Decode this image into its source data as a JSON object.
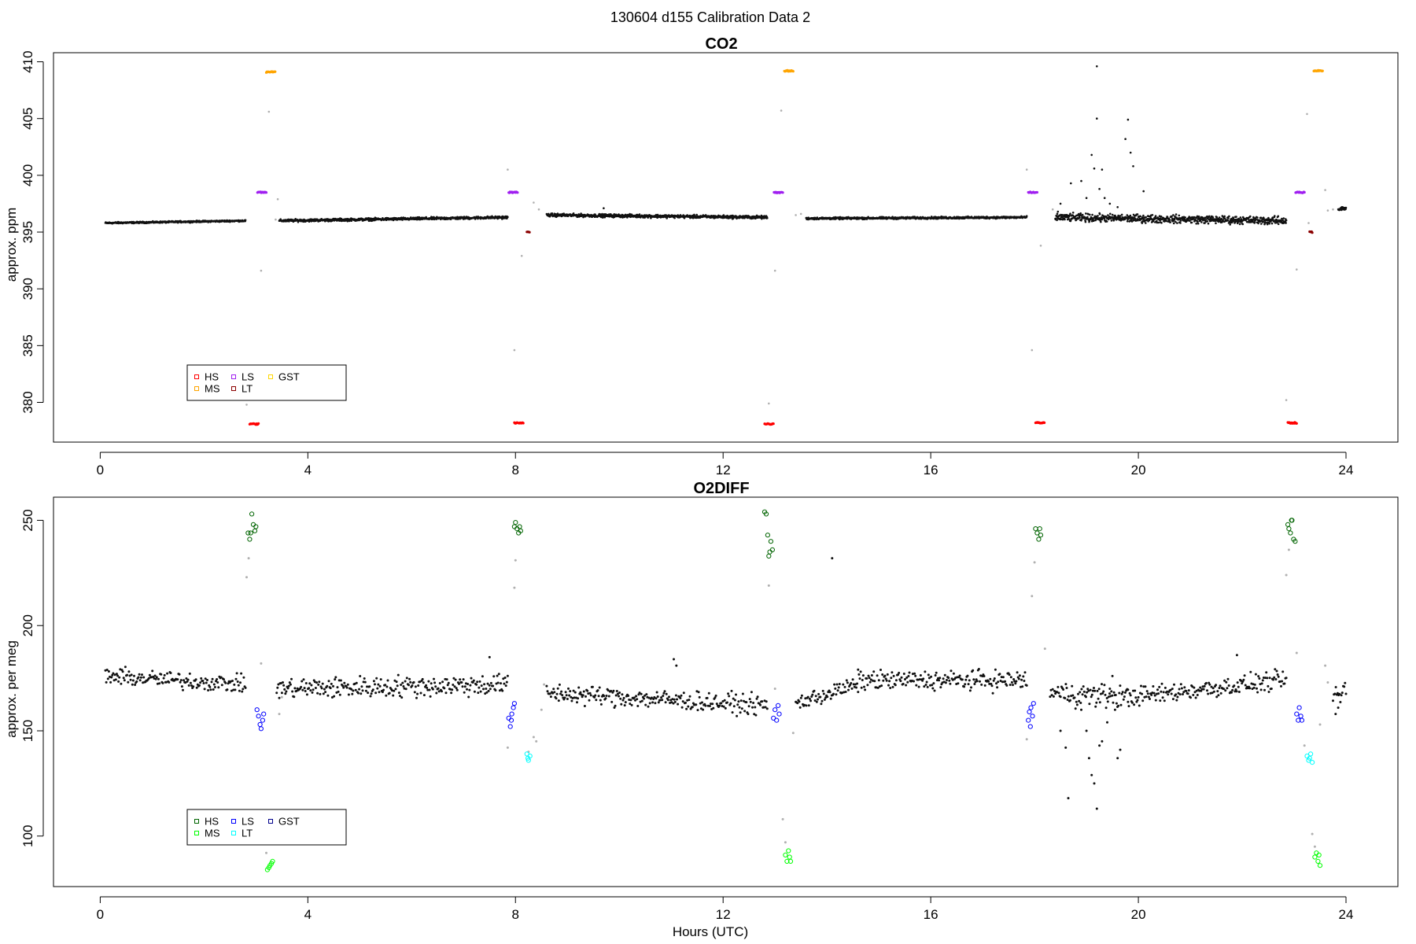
{
  "figure_title": "130604   d155   Calibration Data 2",
  "chart_data": [
    {
      "type": "scatter",
      "title": "CO2",
      "xlabel": "",
      "ylabel": "approx. ppm",
      "xlim": [
        -0.9,
        25
      ],
      "ylim": [
        376.5,
        410.8
      ],
      "xticks": [
        0,
        4,
        8,
        12,
        16,
        20,
        24
      ],
      "yticks": [
        380,
        385,
        390,
        395,
        400,
        405,
        410
      ],
      "legend": {
        "position": "bottom-left",
        "entries": [
          {
            "label": "HS",
            "color": "#ff0000"
          },
          {
            "label": "MS",
            "color": "#ffa500"
          },
          {
            "label": "LS",
            "color": "#a020f0"
          },
          {
            "label": "LT",
            "color": "#8b0000"
          },
          {
            "label": "GST",
            "color": "#ffd700"
          }
        ]
      },
      "ambient_segments": [
        {
          "x0": 0.1,
          "x1": 2.8,
          "y0": 395.8,
          "y1": 396.0,
          "noise": 0.06
        },
        {
          "x0": 3.45,
          "x1": 7.85,
          "y0": 396.0,
          "y1": 396.3,
          "noise": 0.1
        },
        {
          "x0": 8.6,
          "x1": 12.85,
          "y0": 396.5,
          "y1": 396.3,
          "noise": 0.12
        },
        {
          "x0": 13.6,
          "x1": 17.85,
          "y0": 396.2,
          "y1": 396.3,
          "noise": 0.08
        },
        {
          "x0": 18.4,
          "x1": 22.85,
          "y0": 396.3,
          "y1": 396.0,
          "noise": 0.3
        },
        {
          "x0": 23.85,
          "x1": 24.0,
          "y0": 397.0,
          "y1": 397.1,
          "noise": 0.15
        }
      ],
      "ambient_points": [
        {
          "x": 18.5,
          "y": 397.5
        },
        {
          "x": 18.7,
          "y": 399.3
        },
        {
          "x": 18.9,
          "y": 399.5
        },
        {
          "x": 19.0,
          "y": 398.0
        },
        {
          "x": 19.1,
          "y": 401.8
        },
        {
          "x": 19.15,
          "y": 400.6
        },
        {
          "x": 19.2,
          "y": 405.0
        },
        {
          "x": 19.25,
          "y": 398.8
        },
        {
          "x": 19.3,
          "y": 400.5
        },
        {
          "x": 19.35,
          "y": 398.0
        },
        {
          "x": 19.45,
          "y": 397.5
        },
        {
          "x": 19.6,
          "y": 397.2
        },
        {
          "x": 19.75,
          "y": 403.2
        },
        {
          "x": 19.8,
          "y": 404.9
        },
        {
          "x": 19.85,
          "y": 402.0
        },
        {
          "x": 19.9,
          "y": 400.8
        },
        {
          "x": 20.1,
          "y": 398.6
        },
        {
          "x": 19.2,
          "y": 409.6
        },
        {
          "x": 9.7,
          "y": 397.1
        },
        {
          "x": 18.45,
          "y": 396.8
        },
        {
          "x": 21.4,
          "y": 396.2
        }
      ],
      "transition_points": [
        {
          "x": 2.82,
          "y": 379.8
        },
        {
          "x": 3.1,
          "y": 391.6
        },
        {
          "x": 3.25,
          "y": 405.6
        },
        {
          "x": 3.38,
          "y": 396.1
        },
        {
          "x": 3.42,
          "y": 397.9
        },
        {
          "x": 7.85,
          "y": 400.5
        },
        {
          "x": 7.98,
          "y": 384.6
        },
        {
          "x": 8.12,
          "y": 392.9
        },
        {
          "x": 8.35,
          "y": 397.6
        },
        {
          "x": 8.45,
          "y": 397.0
        },
        {
          "x": 12.88,
          "y": 379.9
        },
        {
          "x": 13.0,
          "y": 391.6
        },
        {
          "x": 13.12,
          "y": 405.7
        },
        {
          "x": 13.4,
          "y": 396.5
        },
        {
          "x": 13.5,
          "y": 396.6
        },
        {
          "x": 17.85,
          "y": 400.5
        },
        {
          "x": 17.95,
          "y": 384.6
        },
        {
          "x": 18.12,
          "y": 393.8
        },
        {
          "x": 18.35,
          "y": 397.0
        },
        {
          "x": 22.85,
          "y": 380.2
        },
        {
          "x": 23.05,
          "y": 391.7
        },
        {
          "x": 23.25,
          "y": 405.4
        },
        {
          "x": 23.28,
          "y": 395.8
        },
        {
          "x": 23.6,
          "y": 398.7
        },
        {
          "x": 23.65,
          "y": 396.9
        },
        {
          "x": 23.75,
          "y": 397.0
        }
      ],
      "calibration_groups": [
        {
          "label": "HS",
          "color": "#ff0000",
          "x0": 2.88,
          "x1": 3.05,
          "y": 378.1
        },
        {
          "label": "LS",
          "color": "#a020f0",
          "x0": 3.03,
          "x1": 3.2,
          "y": 398.5
        },
        {
          "label": "MS",
          "color": "#ffa500",
          "x0": 3.2,
          "x1": 3.37,
          "y": 409.1
        },
        {
          "label": "LS",
          "color": "#a020f0",
          "x0": 7.87,
          "x1": 8.04,
          "y": 398.5
        },
        {
          "label": "HS",
          "color": "#ff0000",
          "x0": 7.98,
          "x1": 8.15,
          "y": 378.2
        },
        {
          "label": "LT",
          "color": "#8b0000",
          "x0": 8.22,
          "x1": 8.27,
          "y": 395.0
        },
        {
          "label": "HS",
          "color": "#ff0000",
          "x0": 12.8,
          "x1": 12.97,
          "y": 378.1
        },
        {
          "label": "LS",
          "color": "#a020f0",
          "x0": 12.98,
          "x1": 13.15,
          "y": 398.5
        },
        {
          "label": "MS",
          "color": "#ffa500",
          "x0": 13.18,
          "x1": 13.35,
          "y": 409.2
        },
        {
          "label": "LS",
          "color": "#a020f0",
          "x0": 17.88,
          "x1": 18.05,
          "y": 398.5
        },
        {
          "label": "HS",
          "color": "#ff0000",
          "x0": 18.02,
          "x1": 18.19,
          "y": 378.2
        },
        {
          "label": "HS",
          "color": "#ff0000",
          "x0": 22.88,
          "x1": 23.05,
          "y": 378.2
        },
        {
          "label": "LS",
          "color": "#a020f0",
          "x0": 23.03,
          "x1": 23.2,
          "y": 398.5
        },
        {
          "label": "LT",
          "color": "#8b0000",
          "x0": 23.3,
          "x1": 23.35,
          "y": 395.0
        },
        {
          "label": "MS",
          "color": "#ffa500",
          "x0": 23.38,
          "x1": 23.55,
          "y": 409.2
        }
      ]
    },
    {
      "type": "scatter",
      "title": "O2DIFF",
      "xlabel": "Hours (UTC)",
      "ylabel": "approx. per meg",
      "xlim": [
        -0.9,
        25
      ],
      "ylim": [
        76,
        261
      ],
      "xticks": [
        0,
        4,
        8,
        12,
        16,
        20,
        24
      ],
      "yticks": [
        100,
        150,
        200,
        250
      ],
      "legend": {
        "position": "bottom-left",
        "entries": [
          {
            "label": "HS",
            "color": "#006400"
          },
          {
            "label": "MS",
            "color": "#00ff00"
          },
          {
            "label": "LS",
            "color": "#0000ff"
          },
          {
            "label": "LT",
            "color": "#00ffff"
          },
          {
            "label": "GST",
            "color": "#00008b"
          }
        ]
      },
      "ambient_segments": [
        {
          "x0": 0.1,
          "x1": 2.8,
          "y0": 176,
          "y1": 172,
          "noise": 3.5
        },
        {
          "x0": 3.4,
          "x1": 7.85,
          "y0": 170,
          "y1": 172,
          "noise": 4.5
        },
        {
          "x0": 8.6,
          "x1": 12.85,
          "y0": 168,
          "y1": 162,
          "noise": 4.0
        },
        {
          "x0": 13.4,
          "x1": 14.6,
          "y0": 163,
          "y1": 172,
          "noise": 3.5
        },
        {
          "x0": 14.6,
          "x1": 17.85,
          "y0": 174,
          "y1": 174,
          "noise": 4.0
        },
        {
          "x0": 18.3,
          "x1": 19.8,
          "y0": 168,
          "y1": 166,
          "noise": 5.0
        },
        {
          "x0": 19.8,
          "x1": 22.85,
          "y0": 166,
          "y1": 174,
          "noise": 4.0
        },
        {
          "x0": 23.75,
          "x1": 24.0,
          "y0": 165,
          "y1": 170,
          "noise": 4.0
        }
      ],
      "ambient_points": [
        {
          "x": 7.5,
          "y": 185
        },
        {
          "x": 11.05,
          "y": 184
        },
        {
          "x": 11.1,
          "y": 181
        },
        {
          "x": 14.1,
          "y": 232
        },
        {
          "x": 21.9,
          "y": 186
        },
        {
          "x": 18.6,
          "y": 142
        },
        {
          "x": 18.65,
          "y": 118
        },
        {
          "x": 19.1,
          "y": 129
        },
        {
          "x": 19.15,
          "y": 125
        },
        {
          "x": 19.2,
          "y": 113
        },
        {
          "x": 19.05,
          "y": 137
        },
        {
          "x": 19.25,
          "y": 143
        },
        {
          "x": 19.6,
          "y": 137
        },
        {
          "x": 19.65,
          "y": 141
        },
        {
          "x": 19.4,
          "y": 154
        },
        {
          "x": 19.55,
          "y": 160
        },
        {
          "x": 19.5,
          "y": 176
        },
        {
          "x": 19.45,
          "y": 170
        },
        {
          "x": 18.9,
          "y": 160
        },
        {
          "x": 18.5,
          "y": 150
        },
        {
          "x": 19.0,
          "y": 150
        },
        {
          "x": 19.3,
          "y": 145
        },
        {
          "x": 23.8,
          "y": 158
        },
        {
          "x": 23.85,
          "y": 161
        }
      ],
      "transition_points": [
        {
          "x": 2.82,
          "y": 223
        },
        {
          "x": 2.86,
          "y": 232
        },
        {
          "x": 3.1,
          "y": 182
        },
        {
          "x": 3.2,
          "y": 92
        },
        {
          "x": 3.45,
          "y": 158
        },
        {
          "x": 3.5,
          "y": 166
        },
        {
          "x": 7.85,
          "y": 142
        },
        {
          "x": 7.98,
          "y": 218
        },
        {
          "x": 8.0,
          "y": 231
        },
        {
          "x": 8.25,
          "y": 140
        },
        {
          "x": 8.35,
          "y": 147
        },
        {
          "x": 8.4,
          "y": 145
        },
        {
          "x": 8.5,
          "y": 160
        },
        {
          "x": 8.55,
          "y": 172
        },
        {
          "x": 12.88,
          "y": 219
        },
        {
          "x": 13.0,
          "y": 170
        },
        {
          "x": 13.15,
          "y": 108
        },
        {
          "x": 13.2,
          "y": 97
        },
        {
          "x": 13.35,
          "y": 149
        },
        {
          "x": 17.85,
          "y": 146
        },
        {
          "x": 17.95,
          "y": 214
        },
        {
          "x": 18.0,
          "y": 230
        },
        {
          "x": 18.2,
          "y": 189
        },
        {
          "x": 22.85,
          "y": 224
        },
        {
          "x": 22.9,
          "y": 236
        },
        {
          "x": 23.05,
          "y": 187
        },
        {
          "x": 23.2,
          "y": 143
        },
        {
          "x": 23.35,
          "y": 101
        },
        {
          "x": 23.4,
          "y": 95
        },
        {
          "x": 23.5,
          "y": 153
        },
        {
          "x": 23.6,
          "y": 181
        },
        {
          "x": 23.65,
          "y": 173
        }
      ],
      "calibration_points": [
        {
          "label": "HS",
          "color": "#006400",
          "values": [
            [
              2.85,
              244
            ],
            [
              2.88,
              241
            ],
            [
              2.92,
              253
            ],
            [
              2.95,
              248
            ],
            [
              2.98,
              245
            ],
            [
              2.9,
              244
            ],
            [
              3.0,
              247
            ]
          ]
        },
        {
          "label": "LS",
          "color": "#0000ff",
          "values": [
            [
              3.02,
              160
            ],
            [
              3.05,
              157
            ],
            [
              3.08,
              153
            ],
            [
              3.1,
              151
            ],
            [
              3.13,
              155
            ],
            [
              3.15,
              158
            ]
          ]
        },
        {
          "label": "MS",
          "color": "#00ff00",
          "values": [
            [
              3.22,
              84
            ],
            [
              3.27,
              86
            ],
            [
              3.32,
              88
            ],
            [
              3.3,
              87
            ],
            [
              3.25,
              85
            ]
          ]
        },
        {
          "label": "LS",
          "color": "#0000ff",
          "values": [
            [
              7.87,
              156
            ],
            [
              7.9,
              152
            ],
            [
              7.93,
              158
            ],
            [
              7.96,
              161
            ],
            [
              7.98,
              163
            ],
            [
              7.92,
              155
            ]
          ]
        },
        {
          "label": "HS",
          "color": "#006400",
          "values": [
            [
              7.98,
              247
            ],
            [
              8.0,
              249
            ],
            [
              8.03,
              246
            ],
            [
              8.06,
              244
            ],
            [
              8.08,
              247
            ],
            [
              8.1,
              245
            ]
          ]
        },
        {
          "label": "LT",
          "color": "#00ffff",
          "values": [
            [
              8.22,
              139
            ],
            [
              8.25,
              136
            ],
            [
              8.28,
              138
            ],
            [
              8.24,
              137
            ]
          ]
        },
        {
          "label": "HS",
          "color": "#006400",
          "values": [
            [
              12.8,
              254
            ],
            [
              12.83,
              253
            ],
            [
              12.86,
              243
            ],
            [
              12.88,
              233
            ],
            [
              12.9,
              235
            ],
            [
              12.92,
              240
            ],
            [
              12.95,
              236
            ]
          ]
        },
        {
          "label": "LS",
          "color": "#0000ff",
          "values": [
            [
              12.97,
              156
            ],
            [
              13.0,
              160
            ],
            [
              13.03,
              155
            ],
            [
              13.06,
              162
            ],
            [
              13.08,
              158
            ]
          ]
        },
        {
          "label": "MS",
          "color": "#00ff00",
          "values": [
            [
              13.2,
              91
            ],
            [
              13.23,
              88
            ],
            [
              13.26,
              93
            ],
            [
              13.3,
              88
            ],
            [
              13.28,
              90
            ]
          ]
        },
        {
          "label": "LS",
          "color": "#0000ff",
          "values": [
            [
              17.88,
              155
            ],
            [
              17.9,
              159
            ],
            [
              17.93,
              161
            ],
            [
              17.96,
              157
            ],
            [
              17.98,
              163
            ],
            [
              17.92,
              152
            ]
          ]
        },
        {
          "label": "HS",
          "color": "#006400",
          "values": [
            [
              18.02,
              246
            ],
            [
              18.05,
              244
            ],
            [
              18.08,
              241
            ],
            [
              18.1,
              246
            ],
            [
              18.12,
              243
            ]
          ]
        },
        {
          "label": "HS",
          "color": "#006400",
          "values": [
            [
              22.88,
              248
            ],
            [
              22.9,
              246
            ],
            [
              22.93,
              244
            ],
            [
              22.96,
              250
            ],
            [
              22.99,
              241
            ],
            [
              23.02,
              240
            ],
            [
              22.95,
              250
            ]
          ]
        },
        {
          "label": "LS",
          "color": "#0000ff",
          "values": [
            [
              23.05,
              158
            ],
            [
              23.08,
              155
            ],
            [
              23.1,
              161
            ],
            [
              23.13,
              157
            ],
            [
              23.15,
              155
            ]
          ]
        },
        {
          "label": "LT",
          "color": "#00ffff",
          "values": [
            [
              23.25,
              138
            ],
            [
              23.28,
              136
            ],
            [
              23.32,
              139
            ],
            [
              23.35,
              135
            ],
            [
              23.3,
              137
            ]
          ]
        },
        {
          "label": "MS",
          "color": "#00ff00",
          "values": [
            [
              23.4,
              90
            ],
            [
              23.43,
              92
            ],
            [
              23.46,
              88
            ],
            [
              23.5,
              86
            ],
            [
              23.48,
              91
            ]
          ]
        }
      ]
    }
  ]
}
